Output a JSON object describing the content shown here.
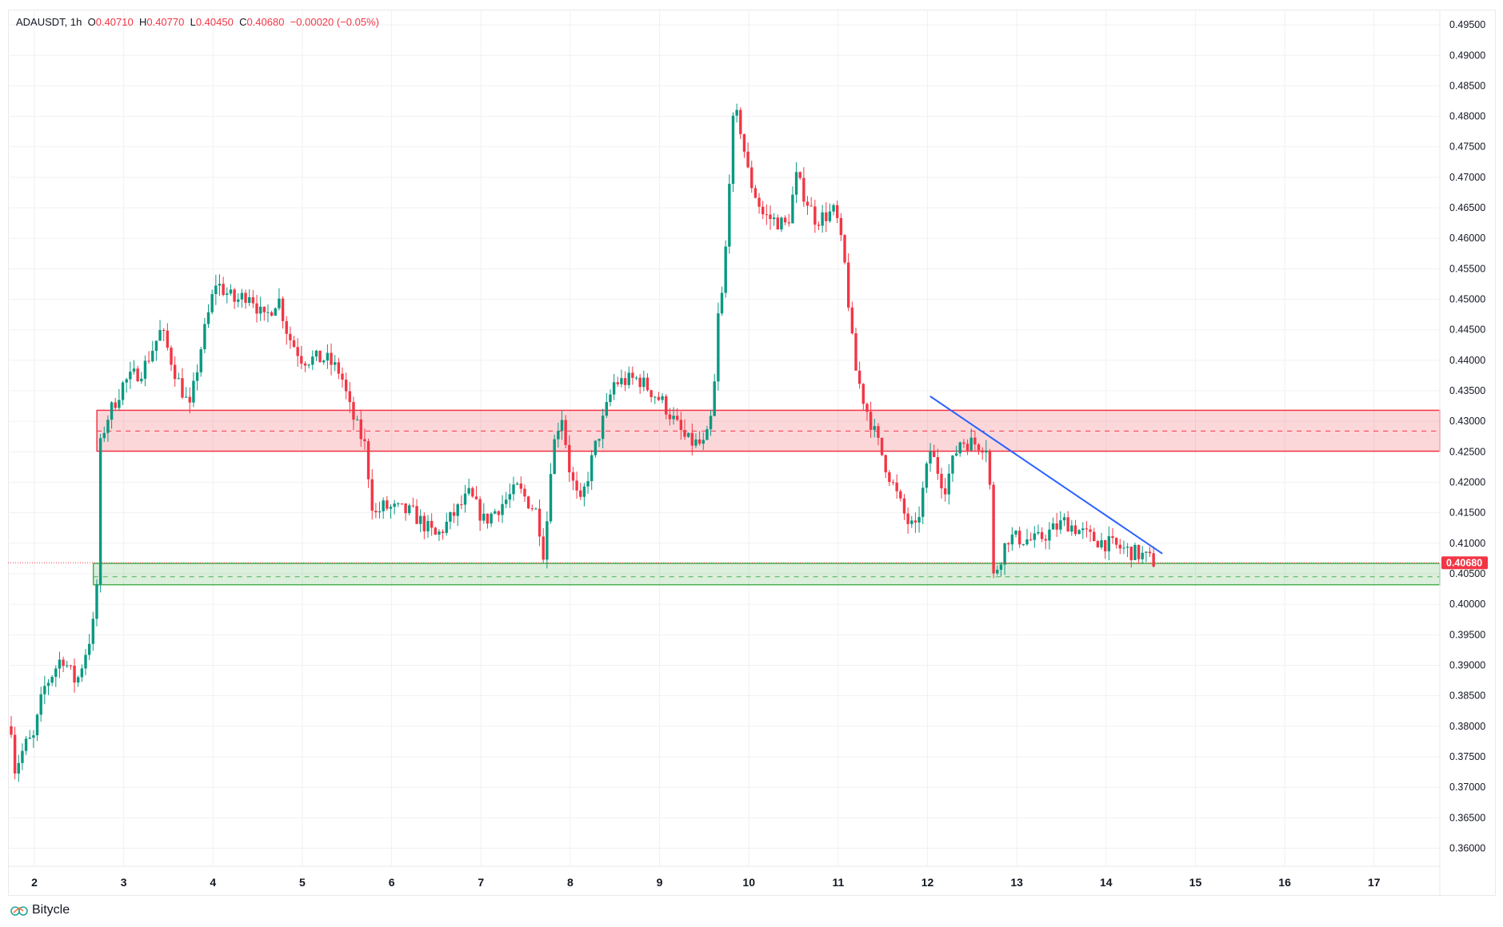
{
  "legend": {
    "symbol": "ADAUSDT, 1h",
    "o_label": "O",
    "open": "0.40710",
    "h_label": "H",
    "high": "0.40770",
    "l_label": "L",
    "low": "0.40450",
    "c_label": "C",
    "close": "0.40680",
    "change": "−0.00020 (−0.05%)"
  },
  "brand": "Bitycle",
  "colors": {
    "up": "#089981",
    "down": "#f23645",
    "trendline": "#2962ff",
    "resistance": "#f23645",
    "support": "#4caf50"
  },
  "chart_data": {
    "type": "candlestick",
    "symbol": "ADAUSDT",
    "interval": "1h",
    "y_ticks": [
      "0.49500",
      "0.49000",
      "0.48500",
      "0.48000",
      "0.47500",
      "0.47000",
      "0.46500",
      "0.46000",
      "0.45500",
      "0.45000",
      "0.44500",
      "0.44000",
      "0.43500",
      "0.43000",
      "0.42500",
      "0.42000",
      "0.41500",
      "0.41000",
      "0.40500",
      "0.40000",
      "0.39500",
      "0.39000",
      "0.38500",
      "0.38000",
      "0.37500",
      "0.37000",
      "0.36500",
      "0.36000"
    ],
    "ylim": [
      0.3565,
      0.4985
    ],
    "x_ticks": [
      "2",
      "3",
      "4",
      "5",
      "6",
      "7",
      "8",
      "9",
      "10",
      "11",
      "12",
      "13",
      "14",
      "15",
      "16",
      "17"
    ],
    "xlim_days": [
      1.7,
      17.75
    ],
    "last_price": "0.40680",
    "last_price_value": 0.4068,
    "close_path_day_price": [
      [
        1.74,
        0.38
      ],
      [
        1.78,
        0.373
      ],
      [
        1.9,
        0.377
      ],
      [
        1.99,
        0.378
      ],
      [
        2.1,
        0.386
      ],
      [
        2.31,
        0.3915
      ],
      [
        2.47,
        0.387
      ],
      [
        2.63,
        0.395
      ],
      [
        2.69,
        0.3986
      ],
      [
        2.74,
        0.426
      ],
      [
        2.8,
        0.43
      ],
      [
        3.0,
        0.4363
      ],
      [
        3.22,
        0.4386
      ],
      [
        3.42,
        0.445
      ],
      [
        3.6,
        0.437
      ],
      [
        3.74,
        0.432
      ],
      [
        3.87,
        0.4425
      ],
      [
        4.03,
        0.4528
      ],
      [
        4.25,
        0.4496
      ],
      [
        4.41,
        0.4512
      ],
      [
        4.57,
        0.4465
      ],
      [
        4.73,
        0.4504
      ],
      [
        4.84,
        0.4441
      ],
      [
        5.0,
        0.4402
      ],
      [
        5.27,
        0.4402
      ],
      [
        5.43,
        0.4379
      ],
      [
        5.54,
        0.4316
      ],
      [
        5.7,
        0.426
      ],
      [
        5.8,
        0.4143
      ],
      [
        5.9,
        0.416
      ],
      [
        6.23,
        0.415
      ],
      [
        6.5,
        0.411
      ],
      [
        6.87,
        0.418
      ],
      [
        7.04,
        0.4136
      ],
      [
        7.41,
        0.419
      ],
      [
        7.63,
        0.415
      ],
      [
        7.71,
        0.4075
      ],
      [
        7.79,
        0.4245
      ],
      [
        7.9,
        0.4316
      ],
      [
        8.0,
        0.4213
      ],
      [
        8.11,
        0.416
      ],
      [
        8.27,
        0.4253
      ],
      [
        8.49,
        0.4363
      ],
      [
        8.76,
        0.437
      ],
      [
        9.03,
        0.4332
      ],
      [
        9.3,
        0.4268
      ],
      [
        9.51,
        0.426
      ],
      [
        9.6,
        0.432
      ],
      [
        9.66,
        0.448
      ],
      [
        9.72,
        0.452
      ],
      [
        9.77,
        0.4677
      ],
      [
        9.82,
        0.4787
      ],
      [
        9.88,
        0.4802
      ],
      [
        10.0,
        0.47
      ],
      [
        10.16,
        0.4638
      ],
      [
        10.43,
        0.462
      ],
      [
        10.53,
        0.47
      ],
      [
        10.75,
        0.463
      ],
      [
        10.97,
        0.4645
      ],
      [
        11.08,
        0.455
      ],
      [
        11.18,
        0.4394
      ],
      [
        11.29,
        0.4332
      ],
      [
        11.4,
        0.4284
      ],
      [
        11.55,
        0.422
      ],
      [
        11.77,
        0.4136
      ],
      [
        11.87,
        0.412
      ],
      [
        12.03,
        0.4253
      ],
      [
        12.19,
        0.419
      ],
      [
        12.36,
        0.4268
      ],
      [
        12.68,
        0.426
      ],
      [
        12.74,
        0.4045
      ],
      [
        12.9,
        0.411
      ],
      [
        13.22,
        0.4104
      ],
      [
        13.54,
        0.4136
      ],
      [
        13.81,
        0.411
      ],
      [
        14.08,
        0.4096
      ],
      [
        14.4,
        0.408
      ],
      [
        14.56,
        0.4068
      ]
    ],
    "resistance_zone": {
      "top": 0.4318,
      "bottom": 0.4251,
      "mid": 0.4284,
      "start_day": 2.7
    },
    "support_zone": {
      "top": 0.4067,
      "bottom": 0.4032,
      "mid": 0.4045,
      "start_day": 2.66
    },
    "trendline": {
      "start": [
        12.03,
        0.4341
      ],
      "end": [
        14.63,
        0.4083
      ]
    }
  }
}
